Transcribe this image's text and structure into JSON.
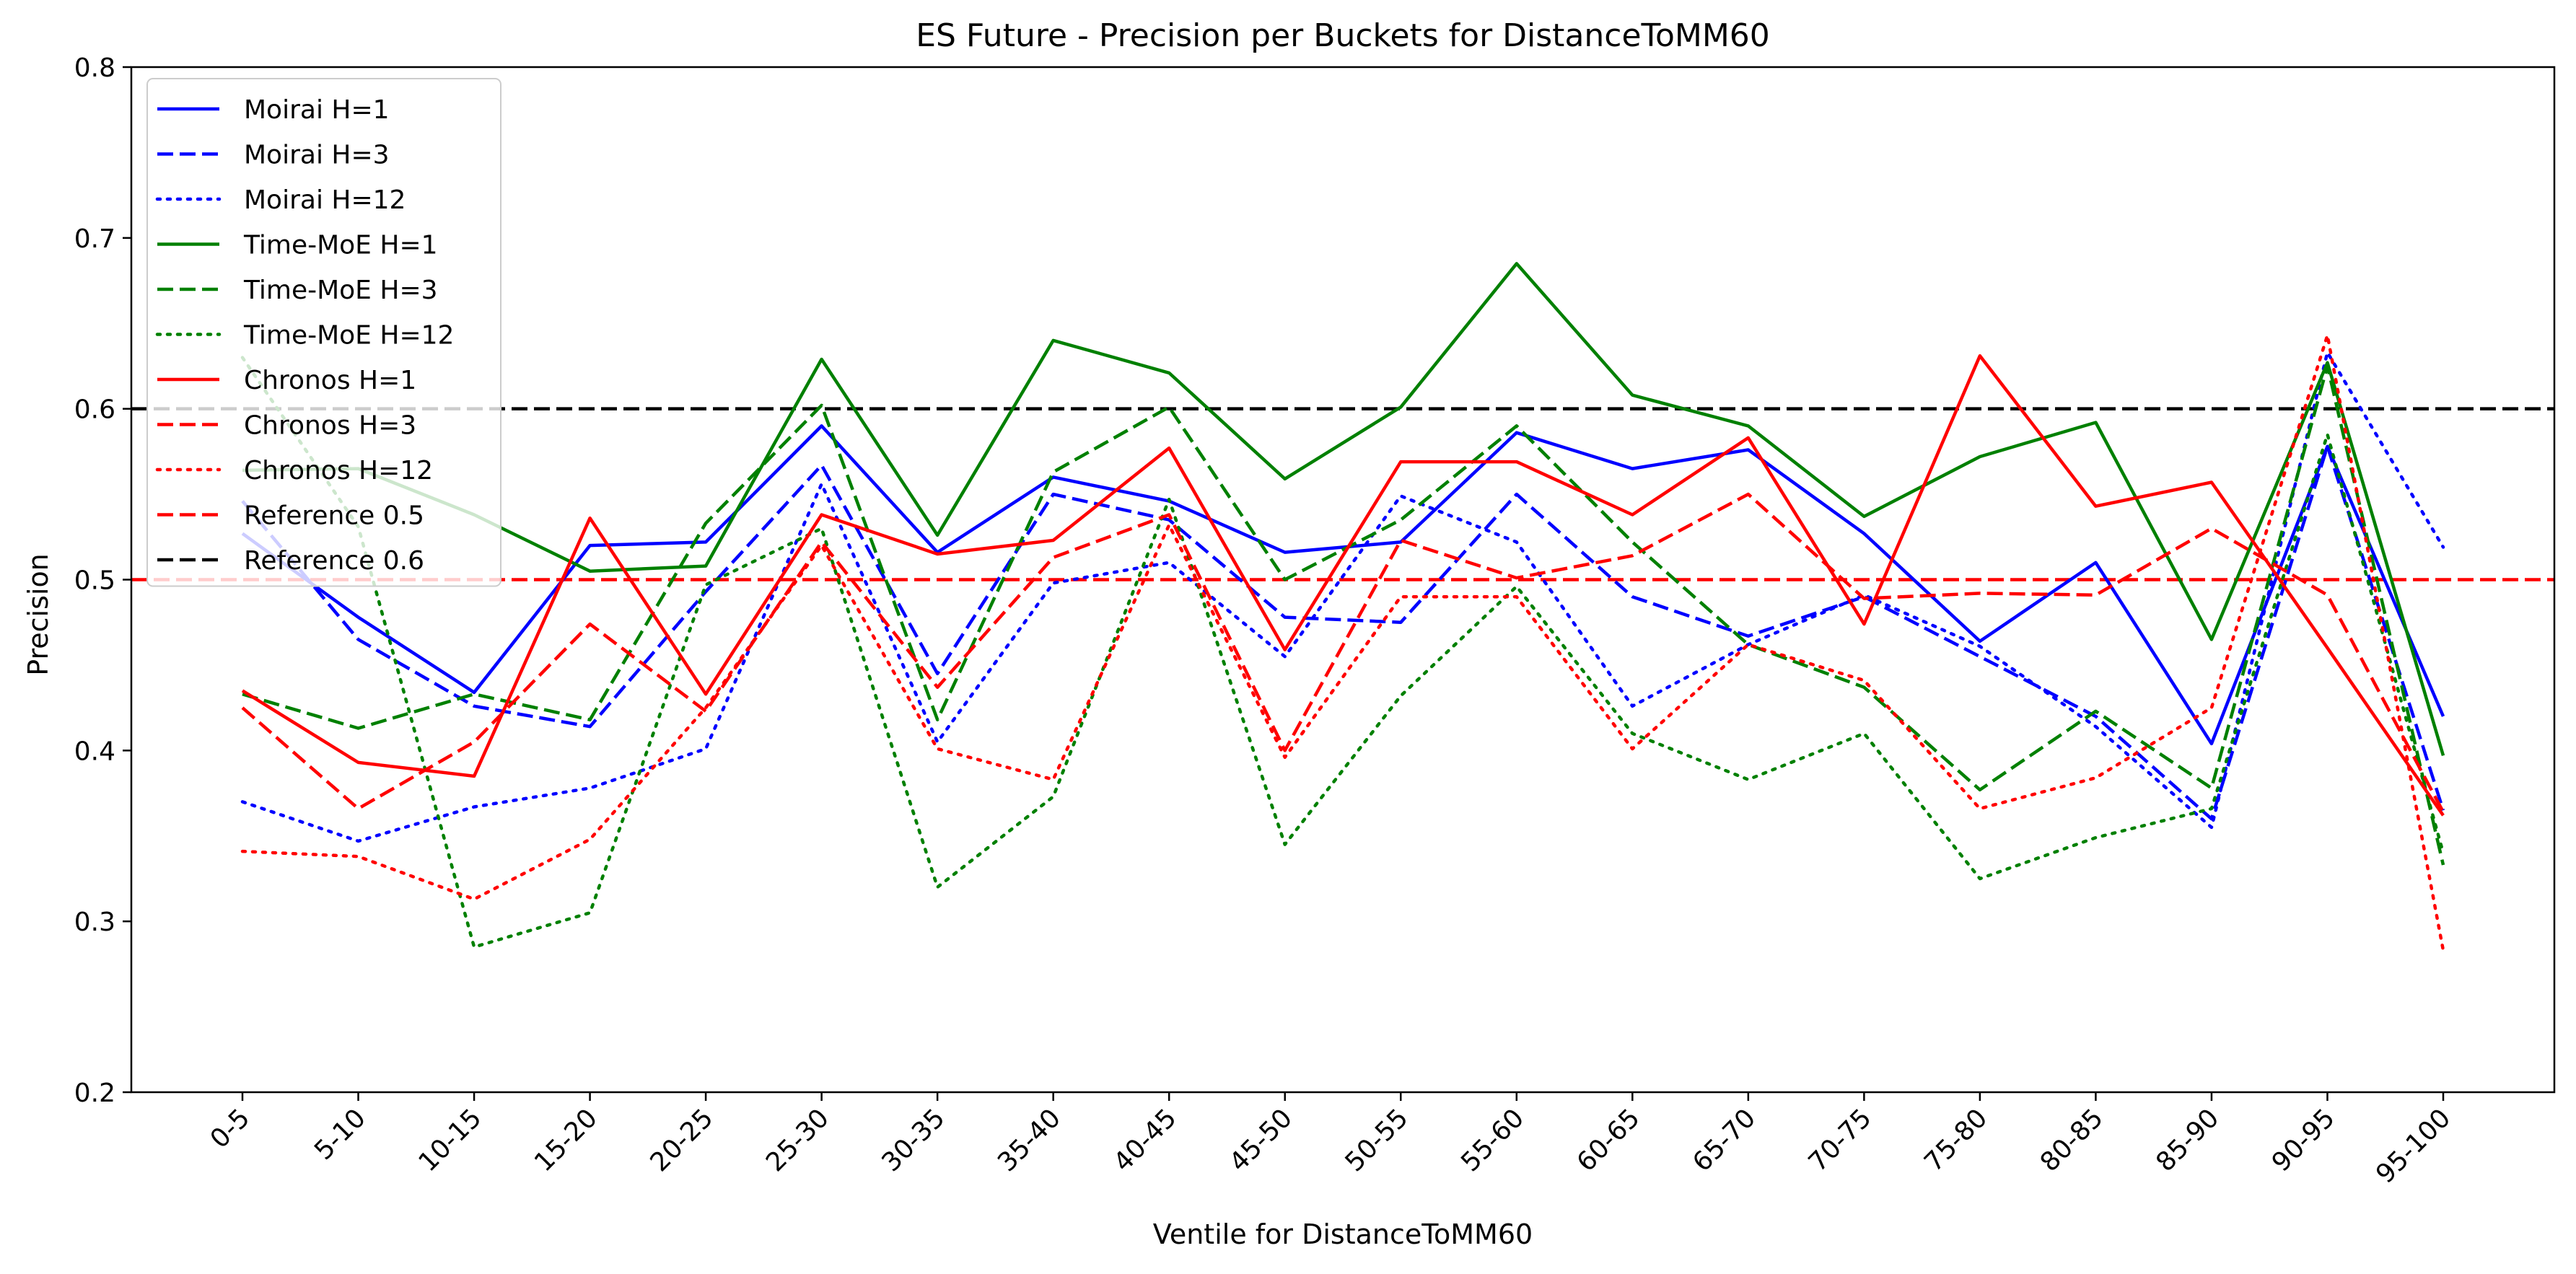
{
  "chart_data": {
    "type": "line",
    "title": "ES Future - Precision per Buckets for DistanceToMM60",
    "xlabel": "Ventile for DistanceToMM60",
    "ylabel": "Precision",
    "ylim": [
      0.2,
      0.8
    ],
    "yticks": [
      "0.2",
      "0.3",
      "0.4",
      "0.5",
      "0.6",
      "0.7",
      "0.8"
    ],
    "grid": false,
    "legend_position": "top-left",
    "categories": [
      "0-5",
      "5-10",
      "10-15",
      "15-20",
      "20-25",
      "25-30",
      "30-35",
      "35-40",
      "40-45",
      "45-50",
      "50-55",
      "55-60",
      "60-65",
      "65-70",
      "70-75",
      "75-80",
      "80-85",
      "85-90",
      "90-95",
      "95-100"
    ],
    "series": [
      {
        "name": "Moirai H=1",
        "color": "#0000ff",
        "style": "solid",
        "values": [
          0.527,
          0.478,
          0.434,
          0.52,
          0.522,
          0.59,
          0.516,
          0.56,
          0.546,
          0.516,
          0.522,
          0.586,
          0.565,
          0.576,
          0.527,
          0.464,
          0.51,
          0.404,
          0.578,
          0.42
        ]
      },
      {
        "name": "Moirai H=3",
        "color": "#0000ff",
        "style": "dashed",
        "values": [
          0.546,
          0.465,
          0.426,
          0.414,
          0.493,
          0.567,
          0.445,
          0.55,
          0.535,
          0.478,
          0.475,
          0.55,
          0.49,
          0.467,
          0.49,
          0.455,
          0.42,
          0.36,
          0.578,
          0.365
        ]
      },
      {
        "name": "Moirai H=12",
        "color": "#0000ff",
        "style": "dotted",
        "values": [
          0.37,
          0.347,
          0.367,
          0.378,
          0.401,
          0.556,
          0.405,
          0.498,
          0.51,
          0.455,
          0.549,
          0.522,
          0.426,
          0.462,
          0.491,
          0.461,
          0.414,
          0.355,
          0.633,
          0.519
        ]
      },
      {
        "name": "Time-MoE H=1",
        "color": "#008000",
        "style": "solid",
        "values": [
          0.564,
          0.565,
          0.538,
          0.505,
          0.508,
          0.629,
          0.526,
          0.64,
          0.621,
          0.559,
          0.601,
          0.685,
          0.608,
          0.59,
          0.537,
          0.572,
          0.592,
          0.465,
          0.627,
          0.397
        ]
      },
      {
        "name": "Time-MoE H=3",
        "color": "#008000",
        "style": "dashed",
        "values": [
          0.433,
          0.413,
          0.433,
          0.418,
          0.533,
          0.602,
          0.418,
          0.563,
          0.601,
          0.5,
          0.535,
          0.59,
          0.522,
          0.462,
          0.437,
          0.377,
          0.423,
          0.378,
          0.625,
          0.333
        ]
      },
      {
        "name": "Time-MoE H=12",
        "color": "#008000",
        "style": "dotted",
        "values": [
          0.63,
          0.531,
          0.285,
          0.305,
          0.497,
          0.53,
          0.32,
          0.373,
          0.547,
          0.345,
          0.432,
          0.496,
          0.41,
          0.383,
          0.41,
          0.325,
          0.349,
          0.366,
          0.585,
          0.34
        ]
      },
      {
        "name": "Chronos H=1",
        "color": "#ff0000",
        "style": "solid",
        "values": [
          0.435,
          0.393,
          0.385,
          0.536,
          0.433,
          0.538,
          0.515,
          0.523,
          0.577,
          0.459,
          0.569,
          0.569,
          0.538,
          0.583,
          0.474,
          0.631,
          0.543,
          0.557,
          0.46,
          0.362
        ]
      },
      {
        "name": "Chronos H=3",
        "color": "#ff0000",
        "style": "dashed",
        "values": [
          0.425,
          0.366,
          0.405,
          0.474,
          0.423,
          0.522,
          0.437,
          0.513,
          0.538,
          0.4,
          0.523,
          0.501,
          0.514,
          0.55,
          0.489,
          0.492,
          0.491,
          0.53,
          0.491,
          0.364
        ]
      },
      {
        "name": "Chronos H=12",
        "color": "#ff0000",
        "style": "dotted",
        "values": [
          0.341,
          0.338,
          0.313,
          0.348,
          0.425,
          0.52,
          0.401,
          0.383,
          0.532,
          0.396,
          0.49,
          0.49,
          0.401,
          0.462,
          0.441,
          0.366,
          0.384,
          0.425,
          0.643,
          0.283
        ]
      }
    ],
    "reference_lines": [
      {
        "name": "Reference 0.5",
        "value": 0.5,
        "color": "#ff0000",
        "style": "dashed"
      },
      {
        "name": "Reference 0.6",
        "value": 0.6,
        "color": "#000000",
        "style": "dashed"
      }
    ]
  }
}
